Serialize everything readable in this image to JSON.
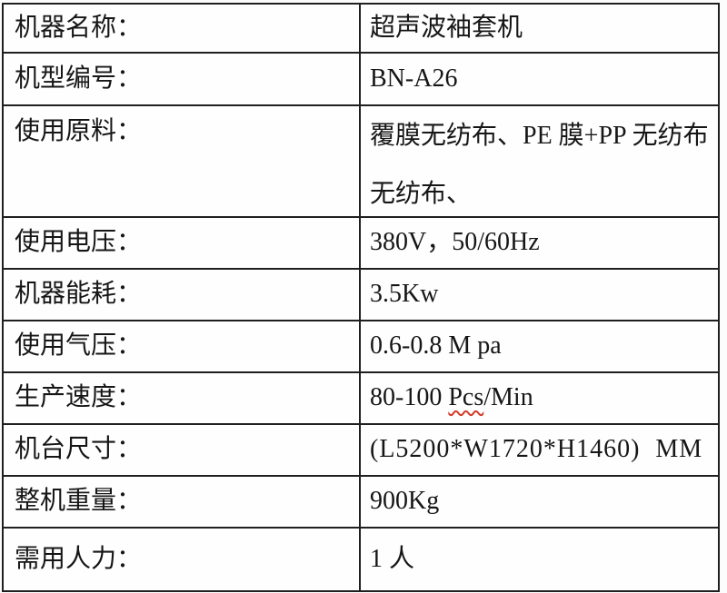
{
  "colors": {
    "background": "#fcfcfc",
    "table_border": "#1f1f1f",
    "text": "#161616",
    "spellcheck_underline": "#d23b2a"
  },
  "table": {
    "rows": [
      {
        "key": "machine-name",
        "label": "机器名称：",
        "value": "超声波袖套机"
      },
      {
        "key": "model-number",
        "label": "机型编号：",
        "value": "BN-A26"
      },
      {
        "key": "raw-material",
        "label": "使用原料：",
        "value_line1": "覆膜无纺布、PE 膜+PP 无纺布",
        "value_line2": "无纺布、"
      },
      {
        "key": "voltage",
        "label": "使用电压：",
        "value": "380V，50/60Hz"
      },
      {
        "key": "power",
        "label": "机器能耗：",
        "value": "3.5Kw"
      },
      {
        "key": "air-pressure",
        "label": "使用气压：",
        "value": "0.6-0.8 M pa"
      },
      {
        "key": "speed",
        "label": "生产速度：",
        "value_prefix": "80-100 ",
        "value_flagged": "Pcs",
        "value_suffix": "/Min"
      },
      {
        "key": "dimensions",
        "label": "机台尺寸：",
        "value": "(L5200*W1720*H1460) MM"
      },
      {
        "key": "weight",
        "label": "整机重量：",
        "value": "900Kg"
      },
      {
        "key": "manpower",
        "label": "需用人力：",
        "value": "1 人"
      }
    ]
  }
}
